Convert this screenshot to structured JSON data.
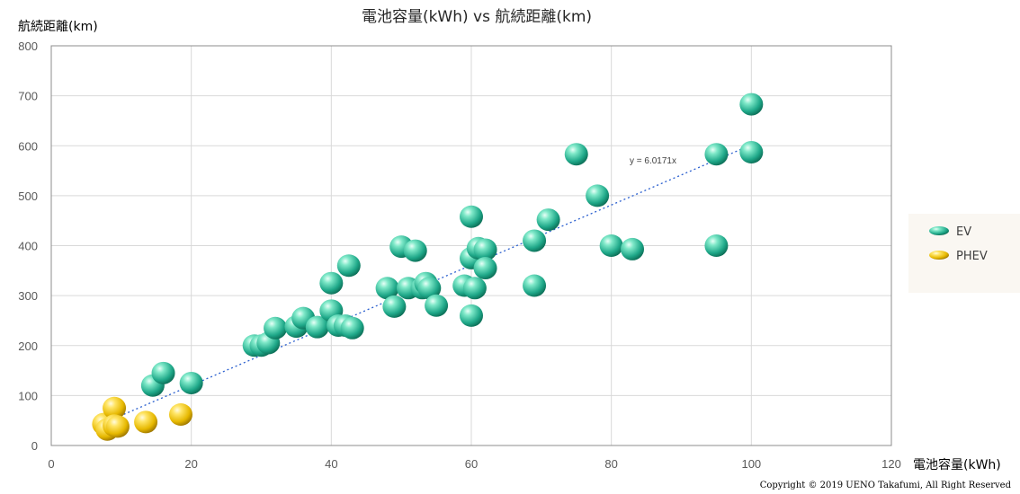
{
  "copyright": "Copyright © 2019 UENO Takafumi, All Right Reserved",
  "colors": {
    "ev": "#1fa889",
    "ev_light": "#a8f0dc",
    "phev": "#e6b800",
    "phev_light": "#fff3a0",
    "trend": "#2a5fcf",
    "grid": "#d9d9d9"
  },
  "chart_data": {
    "type": "scatter",
    "title": "電池容量(kWh) vs 航続距離(km)",
    "xlabel": "電池容量(kWh)",
    "ylabel": "航続距離(km)",
    "xlim": [
      0,
      120
    ],
    "ylim": [
      0,
      800
    ],
    "xticks": [
      0,
      20,
      40,
      60,
      80,
      100,
      120
    ],
    "yticks": [
      0,
      100,
      200,
      300,
      400,
      500,
      600,
      700,
      800
    ],
    "grid": true,
    "legend_position": "right",
    "trendline": {
      "label": "y = 6.0171x",
      "slope": 6.0171,
      "x_range": [
        8,
        100
      ]
    },
    "series": [
      {
        "name": "EV",
        "points": [
          [
            14.5,
            120
          ],
          [
            16,
            145
          ],
          [
            20,
            125
          ],
          [
            29,
            200
          ],
          [
            30,
            200
          ],
          [
            31,
            205
          ],
          [
            32,
            235
          ],
          [
            35,
            238
          ],
          [
            36,
            255
          ],
          [
            38,
            237
          ],
          [
            40,
            325
          ],
          [
            40,
            270
          ],
          [
            41,
            240
          ],
          [
            42,
            240
          ],
          [
            42.5,
            360
          ],
          [
            43,
            235
          ],
          [
            48,
            315
          ],
          [
            49,
            278
          ],
          [
            50,
            398
          ],
          [
            51,
            315
          ],
          [
            52,
            390
          ],
          [
            53,
            315
          ],
          [
            53.5,
            325
          ],
          [
            54,
            315
          ],
          [
            55,
            280
          ],
          [
            59,
            320
          ],
          [
            60,
            458
          ],
          [
            60,
            375
          ],
          [
            60,
            260
          ],
          [
            60.5,
            315
          ],
          [
            61,
            395
          ],
          [
            62,
            392
          ],
          [
            62,
            355
          ],
          [
            69,
            320
          ],
          [
            69,
            410
          ],
          [
            71,
            452
          ],
          [
            75,
            583
          ],
          [
            78,
            500
          ],
          [
            80,
            400
          ],
          [
            83,
            393
          ],
          [
            95,
            583
          ],
          [
            95,
            400
          ],
          [
            100,
            683
          ],
          [
            100,
            587
          ]
        ]
      },
      {
        "name": "PHEV",
        "points": [
          [
            7.5,
            43
          ],
          [
            8,
            32
          ],
          [
            9,
            75
          ],
          [
            9,
            40
          ],
          [
            9.5,
            38
          ],
          [
            13.5,
            47
          ],
          [
            18.5,
            62
          ]
        ]
      }
    ]
  }
}
